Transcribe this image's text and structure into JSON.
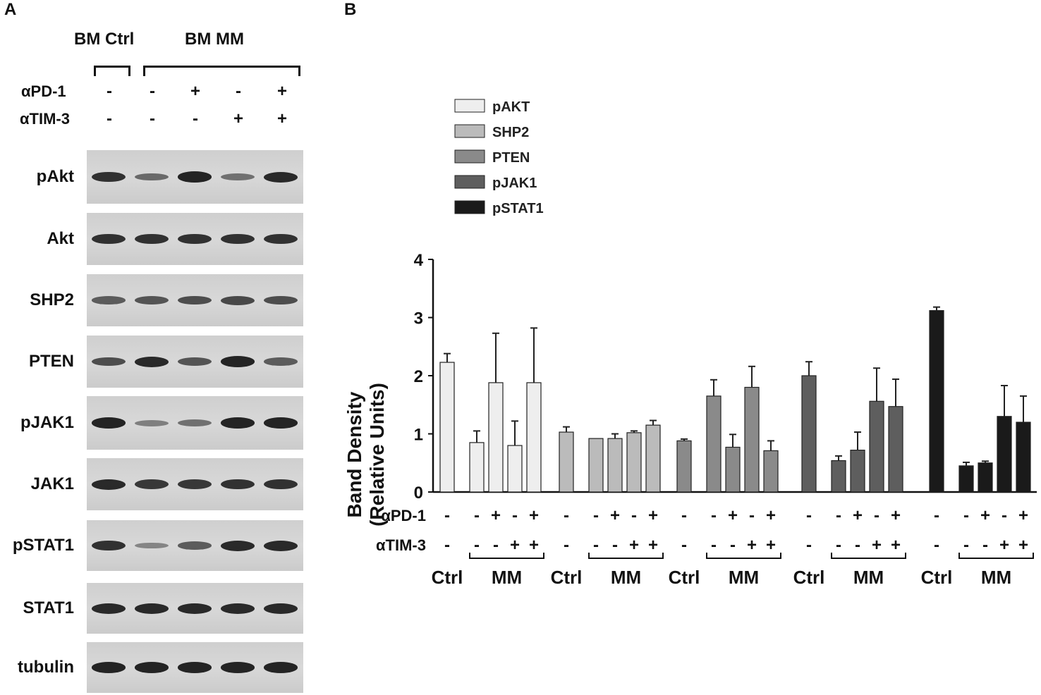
{
  "panels": {
    "a": "A",
    "b": "B"
  },
  "blot": {
    "groups": [
      {
        "label": "BM Ctrl"
      },
      {
        "label": "BM MM"
      }
    ],
    "treatments": [
      {
        "label": "αPD-1",
        "signs": [
          "-",
          "-",
          "+",
          "-",
          "+"
        ]
      },
      {
        "label": "αTIM-3",
        "signs": [
          "-",
          "-",
          "-",
          "+",
          "+"
        ]
      }
    ],
    "rows": [
      {
        "label": "pAkt",
        "intensity": [
          0.85,
          0.45,
          0.95,
          0.4,
          0.9
        ]
      },
      {
        "label": "Akt",
        "intensity": [
          0.85,
          0.85,
          0.85,
          0.85,
          0.85
        ]
      },
      {
        "label": "SHP2",
        "intensity": [
          0.55,
          0.6,
          0.65,
          0.7,
          0.65
        ]
      },
      {
        "label": "PTEN",
        "intensity": [
          0.65,
          0.9,
          0.6,
          0.95,
          0.55
        ]
      },
      {
        "label": "pJAK1",
        "intensity": [
          0.95,
          0.3,
          0.4,
          0.95,
          0.95
        ]
      },
      {
        "label": "JAK1",
        "intensity": [
          0.9,
          0.8,
          0.8,
          0.85,
          0.85
        ]
      },
      {
        "label": "pSTAT1",
        "intensity": [
          0.85,
          0.25,
          0.55,
          0.9,
          0.9
        ]
      },
      {
        "label": "STAT1",
        "intensity": [
          0.9,
          0.9,
          0.9,
          0.9,
          0.9
        ]
      },
      {
        "label": "tubulin",
        "intensity": [
          0.95,
          0.95,
          0.95,
          0.95,
          0.95
        ]
      }
    ]
  },
  "chart_data": {
    "type": "bar",
    "title": "",
    "xlabel": "",
    "ylabel_line1": "Band Density",
    "ylabel_line2": "(Relative Units)",
    "ylim": [
      0,
      4
    ],
    "yticks": [
      0,
      1,
      2,
      3,
      4
    ],
    "grid": false,
    "legend_position": "top-left",
    "series": [
      {
        "name": "pAKT",
        "color": "#eeeeee",
        "values": [
          2.23,
          0.85,
          1.88,
          0.8,
          1.88
        ],
        "errors": [
          0.15,
          0.2,
          0.85,
          0.42,
          0.94
        ]
      },
      {
        "name": "SHP2",
        "color": "#bbbbbb",
        "values": [
          1.03,
          0.92,
          0.92,
          1.02,
          1.15
        ],
        "errors": [
          0.09,
          0.0,
          0.08,
          0.03,
          0.08
        ]
      },
      {
        "name": "PTEN",
        "color": "#8a8a8a",
        "values": [
          0.88,
          1.65,
          0.77,
          1.8,
          0.71
        ],
        "errors": [
          0.03,
          0.28,
          0.22,
          0.36,
          0.17
        ]
      },
      {
        "name": "pJAK1",
        "color": "#5e5e5e",
        "values": [
          2.0,
          0.54,
          0.72,
          1.56,
          1.47
        ],
        "errors": [
          0.24,
          0.08,
          0.31,
          0.57,
          0.47
        ]
      },
      {
        "name": "pSTAT1",
        "color": "#1a1a1a",
        "values": [
          3.12,
          0.45,
          0.5,
          1.3,
          1.2
        ],
        "errors": [
          0.06,
          0.06,
          0.03,
          0.53,
          0.45
        ]
      }
    ],
    "treatments": [
      {
        "label": "αPD-1",
        "signs": [
          "-",
          "-",
          "+",
          "-",
          "+"
        ]
      },
      {
        "label": "αTIM-3",
        "signs": [
          "-",
          "-",
          "-",
          "+",
          "+"
        ]
      }
    ],
    "group_labels": [
      "Ctrl",
      "MM"
    ]
  }
}
